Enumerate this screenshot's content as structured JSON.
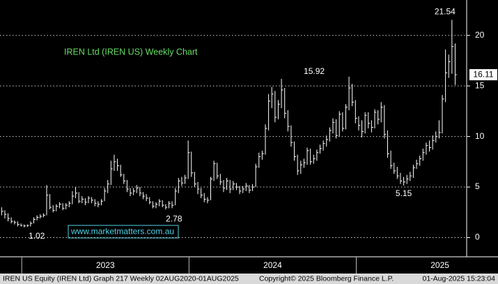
{
  "chart_data": {
    "type": "ohlc",
    "title": "IREN Ltd (IREN US) Weekly Chart",
    "watermark": "www.marketmatters.com.au",
    "footer": [
      "IREN US Equity (IREN Ltd) Graph 217  Weekly 02AUG2020-01AUG2025",
      "Copyright© 2025 Bloomberg Finance L.P.",
      "01-Aug-2025 15:23:04"
    ],
    "color": "#ffffff",
    "grid": true,
    "ylim": [
      -1.9,
      23.5
    ],
    "yticks": [
      0,
      5,
      10,
      15,
      20
    ],
    "xlim": [
      2022.87,
      2025.66
    ],
    "xticks": [
      2023,
      2024,
      2025
    ],
    "xlabels": [
      {
        "value": 2023.5,
        "label": "2023"
      },
      {
        "value": 2024.5,
        "label": "2024"
      },
      {
        "value": 2025.5,
        "label": "2025"
      }
    ],
    "high": [
      3.0,
      2.7,
      2.4,
      2.0,
      1.7,
      1.6,
      1.4,
      1.3,
      1.3,
      1.6,
      2.0,
      2.2,
      2.3,
      2.4,
      5.2,
      4.3,
      3.2,
      3.3,
      3.5,
      3.4,
      3.4,
      3.6,
      4.6,
      5.0,
      4.5,
      4.1,
      3.9,
      4.1,
      4.0,
      3.8,
      3.6,
      3.8,
      4.9,
      5.7,
      7.6,
      8.2,
      7.8,
      7.2,
      6.3,
      5.7,
      4.9,
      4.9,
      5.2,
      5.0,
      4.5,
      4.3,
      4.0,
      3.6,
      3.5,
      3.8,
      3.7,
      3.3,
      3.6,
      3.6,
      4.9,
      5.9,
      6.0,
      6.2,
      9.6,
      8.5,
      6.5,
      5.5,
      4.9,
      4.4,
      4.0,
      6.0,
      7.6,
      7.4,
      6.3,
      5.7,
      5.9,
      5.7,
      5.6,
      5.4,
      5.1,
      5.1,
      5.4,
      5.2,
      5.3,
      7.3,
      8.4,
      8.6,
      11.2,
      14.2,
      14.9,
      14.5,
      13.6,
      15.7,
      14.8,
      12.6,
      11.1,
      9.5,
      8.2,
      7.6,
      7.8,
      8.9,
      8.8,
      8.2,
      8.7,
      9.2,
      9.6,
      10.1,
      10.9,
      11.8,
      11.7,
      12.5,
      12.4,
      13.2,
      15.92,
      15.2,
      13.6,
      12.0,
      11.6,
      12.4,
      12.4,
      11.6,
      12.7,
      12.6,
      13.4,
      13.1,
      10.6,
      8.6,
      7.4,
      7.0,
      6.4,
      6.0,
      6.2,
      6.5,
      7.2,
      7.7,
      8.1,
      8.8,
      9.4,
      9.6,
      10.1,
      10.5,
      11.6,
      14.1,
      18.6,
      18.1,
      21.54,
      19.2
    ],
    "low": [
      2.2,
      1.9,
      1.6,
      1.4,
      1.3,
      1.1,
      1.1,
      1.02,
      1.05,
      1.1,
      1.4,
      1.7,
      1.9,
      2.0,
      2.2,
      2.8,
      2.5,
      2.6,
      2.9,
      2.7,
      2.8,
      3.0,
      3.3,
      3.9,
      3.4,
      3.4,
      3.2,
      3.4,
      3.4,
      3.1,
      3.0,
      3.2,
      3.6,
      4.4,
      5.2,
      6.6,
      6.6,
      6.0,
      5.3,
      4.5,
      4.1,
      4.2,
      4.4,
      4.1,
      3.8,
      3.6,
      3.3,
      2.9,
      2.9,
      3.1,
      3.0,
      2.78,
      2.9,
      2.9,
      3.2,
      4.4,
      5.1,
      5.3,
      5.8,
      6.0,
      5.0,
      4.3,
      3.9,
      3.5,
      3.4,
      3.7,
      5.6,
      5.8,
      5.2,
      4.5,
      4.7,
      4.4,
      4.7,
      4.7,
      4.3,
      4.4,
      4.6,
      4.4,
      4.6,
      5.0,
      6.9,
      7.7,
      8.2,
      10.6,
      12.8,
      11.4,
      11.7,
      12.8,
      11.8,
      10.5,
      9.0,
      7.6,
      6.2,
      6.3,
      6.9,
      7.2,
      7.2,
      7.3,
      7.6,
      8.3,
      8.6,
      9.0,
      9.5,
      10.3,
      9.8,
      10.0,
      10.5,
      10.7,
      12.6,
      13.0,
      11.3,
      10.6,
      9.9,
      10.3,
      10.8,
      10.4,
      10.8,
      11.2,
      11.4,
      9.8,
      7.9,
      6.8,
      6.3,
      5.8,
      5.3,
      5.15,
      5.3,
      5.6,
      5.9,
      6.8,
      7.1,
      7.6,
      8.2,
      8.5,
      8.7,
      9.4,
      9.8,
      10.3,
      13.4,
      15.8,
      16.2,
      15.1
    ],
    "close": [
      2.6,
      2.3,
      1.9,
      1.6,
      1.5,
      1.3,
      1.2,
      1.15,
      1.2,
      1.4,
      1.8,
      2.0,
      2.1,
      2.2,
      4.2,
      3.0,
      2.7,
      3.1,
      3.3,
      2.9,
      3.2,
      3.4,
      4.1,
      4.4,
      3.6,
      3.8,
      3.5,
      3.9,
      3.7,
      3.4,
      3.3,
      3.6,
      4.6,
      5.3,
      6.8,
      7.5,
      7.1,
      6.2,
      5.6,
      4.8,
      4.4,
      4.6,
      4.9,
      4.4,
      4.1,
      3.9,
      3.5,
      3.1,
      3.3,
      3.6,
      3.2,
      3.0,
      3.4,
      3.2,
      4.6,
      5.6,
      5.4,
      5.9,
      8.4,
      6.4,
      5.3,
      4.8,
      4.2,
      3.8,
      3.7,
      5.8,
      7.3,
      6.1,
      5.5,
      4.9,
      5.6,
      4.8,
      5.3,
      5.0,
      4.6,
      4.8,
      5.1,
      4.7,
      5.0,
      7.0,
      8.0,
      8.3,
      10.8,
      13.5,
      14.2,
      11.9,
      13.2,
      14.6,
      12.3,
      11.0,
      9.4,
      8.0,
      6.6,
      7.2,
      7.4,
      8.6,
      7.5,
      7.8,
      8.4,
      8.8,
      9.3,
      9.7,
      10.6,
      11.4,
      10.1,
      12.2,
      10.8,
      12.9,
      14.8,
      13.4,
      11.8,
      11.1,
      10.5,
      12.1,
      11.3,
      10.9,
      12.4,
      11.7,
      12.9,
      10.2,
      8.3,
      7.1,
      6.6,
      6.1,
      5.6,
      5.5,
      5.8,
      6.1,
      6.9,
      7.3,
      7.8,
      8.4,
      9.1,
      8.9,
      9.6,
      10.0,
      10.4,
      13.7,
      16.3,
      17.4,
      18.9,
      16.11
    ]
  }
}
